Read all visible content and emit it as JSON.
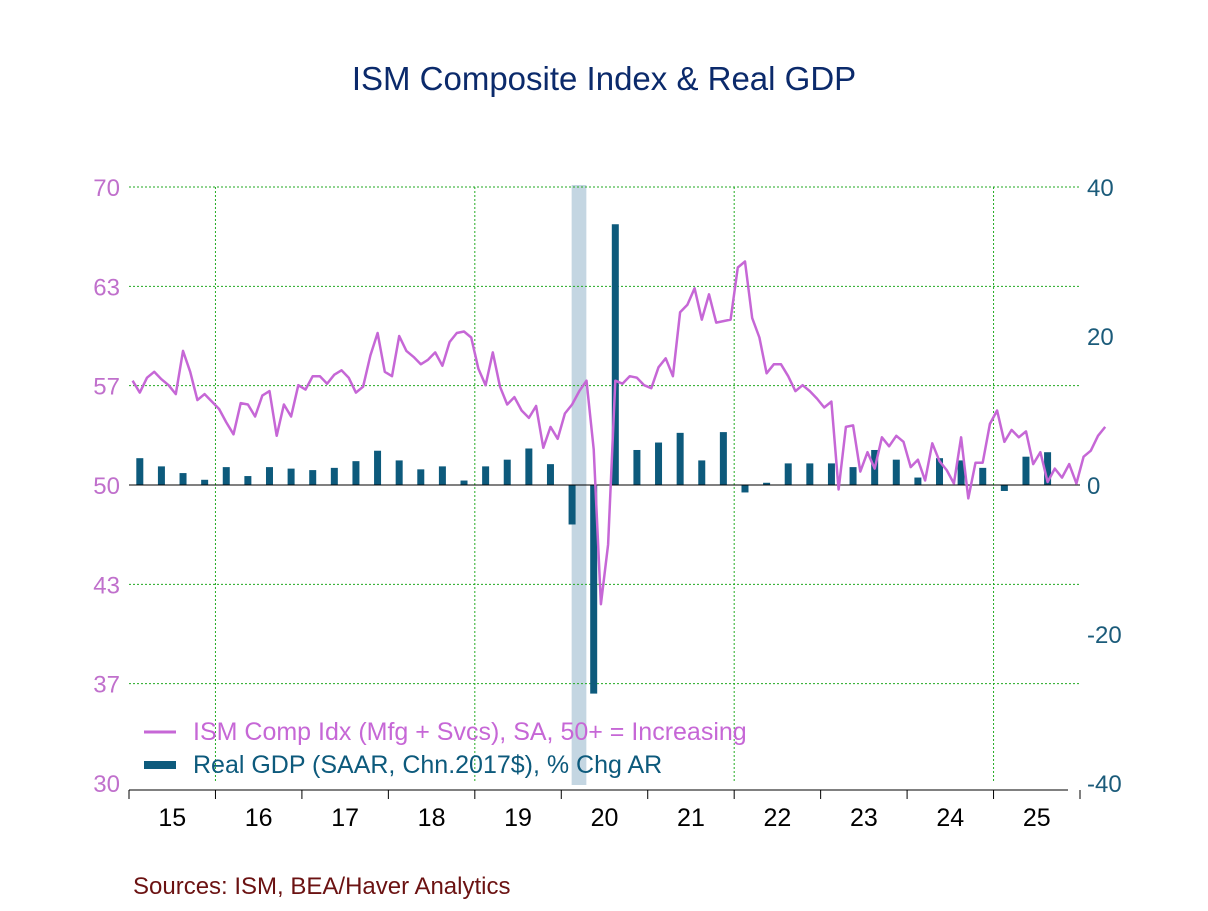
{
  "title": "ISM Composite Index & Real GDP",
  "source": "Sources:   ISM, BEA/Haver Analytics",
  "colors": {
    "ism_line": "#c667d6",
    "gdp_bar": "#0d5a7c",
    "grid": "#22aa22",
    "recession": "#c4d6e2",
    "left_axis": "#c070cc",
    "right_axis": "#1b5b7a",
    "title": "#0b2a6b",
    "source": "#6b1212"
  },
  "chart_data": {
    "type": "line+bar",
    "title": "ISM Composite Index & Real GDP",
    "x_tick_labels": [
      "15",
      "16",
      "17",
      "18",
      "19",
      "20",
      "21",
      "22",
      "23",
      "24",
      "25"
    ],
    "x_range": [
      2015,
      2026
    ],
    "left_axis": {
      "range": [
        30,
        70
      ],
      "ticks": [
        "70",
        "63",
        "57",
        "50",
        "43",
        "37",
        "30"
      ]
    },
    "right_axis": {
      "range": [
        -40,
        40
      ],
      "ticks": [
        "40",
        "20",
        "0",
        "-20",
        "-40"
      ]
    },
    "grid": true,
    "legend_placement": "bottom-left",
    "recession_shading": [
      {
        "start": 2020.12,
        "end": 2020.29
      }
    ],
    "series": [
      {
        "name": "ISM Comp Idx (Mfg + Svcs), SA, 50+ = Increasing",
        "kind": "line",
        "axis": "left",
        "start": "2015-01",
        "frequency": "monthly",
        "values": [
          57.0,
          56.2,
          57.2,
          57.6,
          57.1,
          56.7,
          56.1,
          59.0,
          57.6,
          55.7,
          56.1,
          55.6,
          55.1,
          54.2,
          53.4,
          55.5,
          55.4,
          54.6,
          56.0,
          56.3,
          53.3,
          55.4,
          54.6,
          56.7,
          56.4,
          57.3,
          57.3,
          56.8,
          57.4,
          57.7,
          57.2,
          56.2,
          56.6,
          58.7,
          60.2,
          57.6,
          57.3,
          60.0,
          59.0,
          58.6,
          58.1,
          58.4,
          58.9,
          58.0,
          59.6,
          60.2,
          60.3,
          59.9,
          57.8,
          56.7,
          58.9,
          56.6,
          55.4,
          55.9,
          55.0,
          54.5,
          55.3,
          52.5,
          53.9,
          53.1,
          54.8,
          55.4,
          56.3,
          57.0,
          52.4,
          42.0,
          46.0,
          57.0,
          56.8,
          57.3,
          57.2,
          56.7,
          56.5,
          57.9,
          58.5,
          57.3,
          61.6,
          62.1,
          63.2,
          61.1,
          62.8,
          60.9,
          61.0,
          61.1,
          64.6,
          65.0,
          61.2,
          59.9,
          57.5,
          58.1,
          58.1,
          57.3,
          56.3,
          56.7,
          56.3,
          55.8,
          55.2,
          55.6,
          49.7,
          53.9,
          54.0,
          50.9,
          52.2,
          51.1,
          53.2,
          52.6,
          53.3,
          52.9,
          51.2,
          51.7,
          50.3,
          52.8,
          51.6,
          51.0,
          50.1,
          53.2,
          49.1,
          51.5,
          51.5,
          54.1,
          55.0,
          52.9,
          53.7,
          53.2,
          53.6,
          51.4,
          52.2,
          50.2,
          51.1,
          50.5,
          51.4,
          50.1,
          51.9,
          52.3,
          53.3,
          53.9
        ]
      },
      {
        "name": "Real GDP (SAAR, Chn.2017$), % Chg AR",
        "kind": "bar",
        "axis": "right",
        "start": "2015-Q1",
        "frequency": "quarterly",
        "values": [
          3.6,
          2.5,
          1.6,
          0.7,
          2.4,
          1.2,
          2.4,
          2.2,
          2.0,
          2.3,
          3.2,
          4.6,
          3.3,
          2.1,
          2.5,
          0.6,
          2.5,
          3.4,
          4.9,
          2.8,
          -5.3,
          -28.0,
          35.0,
          4.7,
          5.7,
          7.0,
          3.3,
          7.1,
          -1.0,
          0.3,
          2.9,
          2.9,
          2.9,
          2.4,
          4.7,
          3.4,
          1.0,
          3.6,
          3.3,
          2.3,
          -0.8,
          3.8,
          4.4
        ]
      }
    ]
  }
}
